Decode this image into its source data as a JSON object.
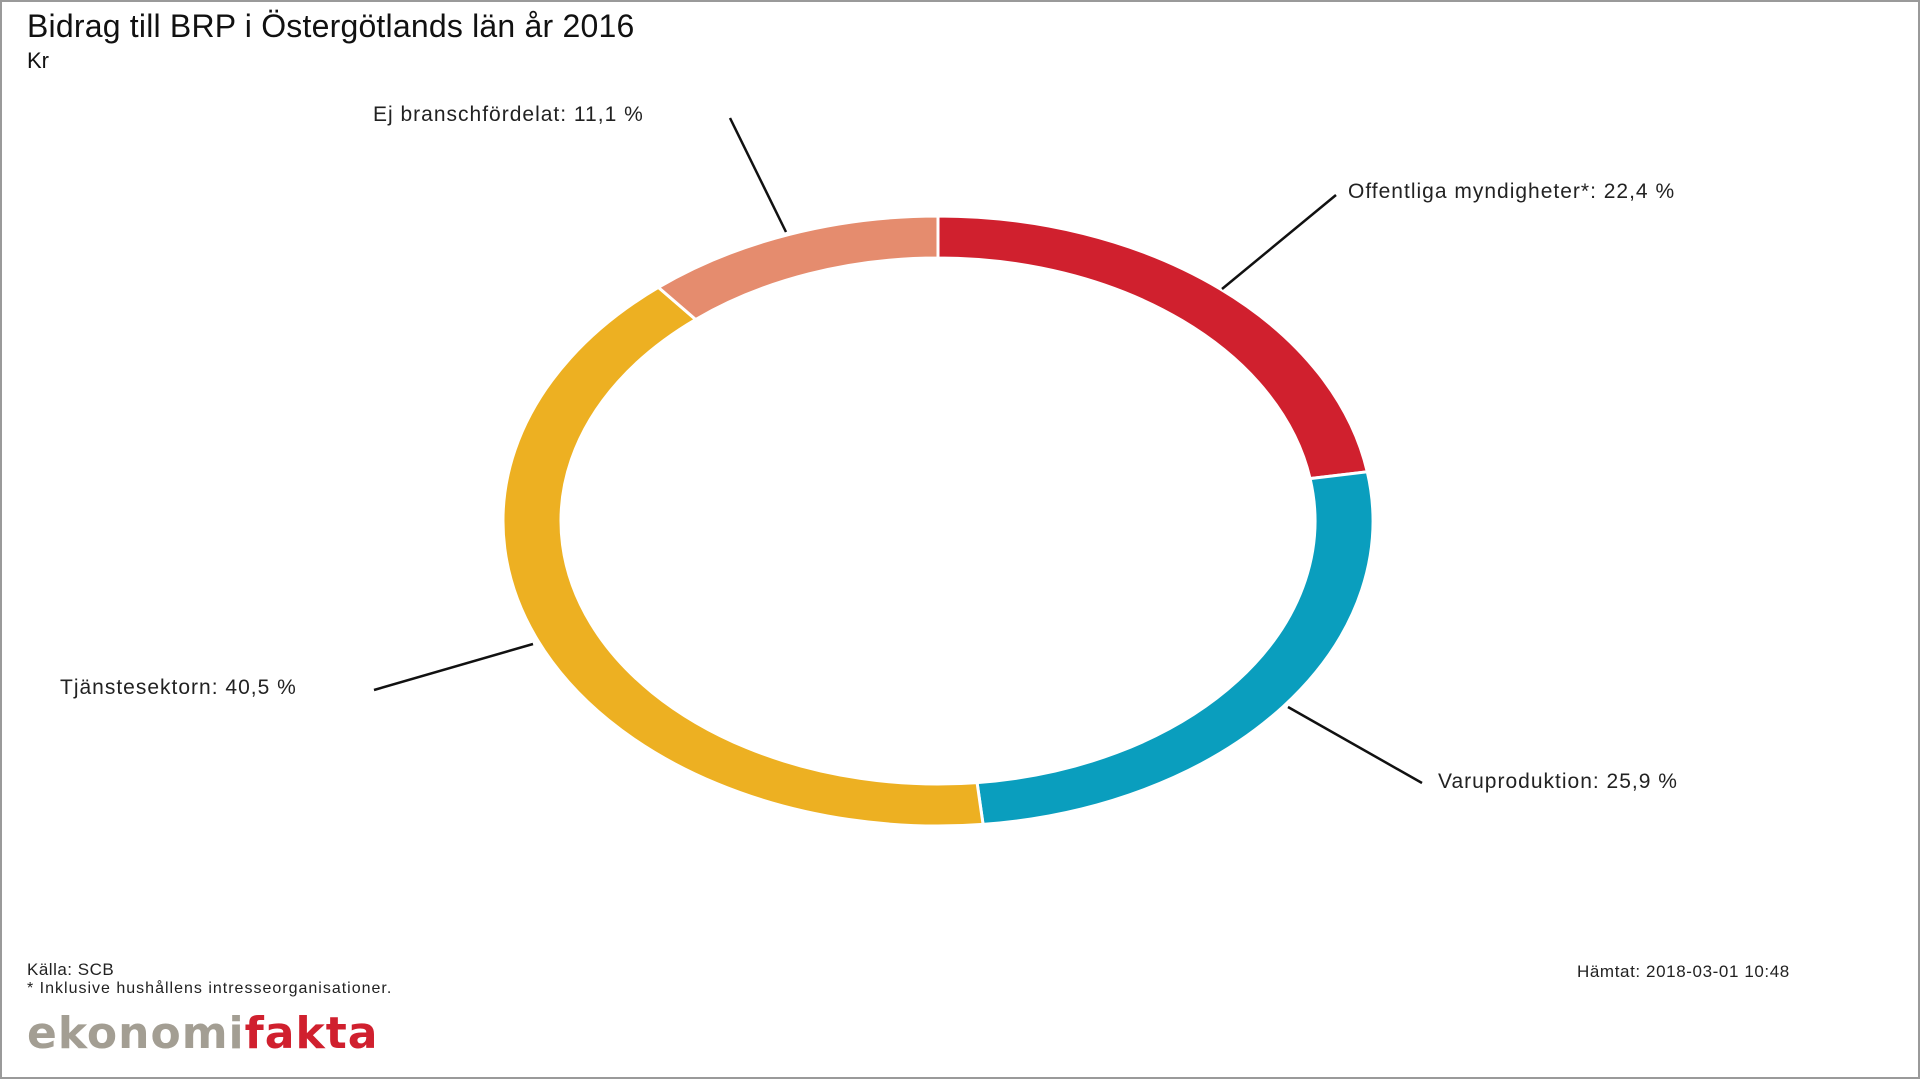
{
  "header": {
    "title": "Bidrag till BRP i Östergötlands län år 2016",
    "subtitle": "Kr"
  },
  "labels": {
    "ej": "Ej branschfördelat: 11,1 %",
    "offentliga": "Offentliga myndigheter*: 22,4 %",
    "varu": "Varuproduktion: 25,9 %",
    "tjanste": "Tjänstesektorn: 40,5 %"
  },
  "footer": {
    "source": "Källa: SCB",
    "note": "* Inklusive hushållens intresseorganisationer.",
    "fetched": "Hämtat: 2018-03-01 10:48",
    "logo_part1": "ekonomi",
    "logo_part2": "fakta"
  },
  "chart_data": {
    "type": "pie",
    "variant": "donut",
    "title": "Bidrag till BRP i Östergötlands län år 2016",
    "subtitle": "Kr",
    "categories": [
      "Offentliga myndigheter*",
      "Varuproduktion",
      "Tjänstesektorn",
      "Ej branschfördelat"
    ],
    "values": [
      22.4,
      25.9,
      40.5,
      11.1
    ],
    "unit": "%",
    "colors": [
      "#D0202E",
      "#0A9EBE",
      "#EDB022",
      "#E58C6E"
    ],
    "start_angle": "top, clockwise",
    "legend": "none (leader-line labels)",
    "source": "Källa: SCB",
    "footnote": "* Inklusive hushållens intresseorganisationer."
  }
}
